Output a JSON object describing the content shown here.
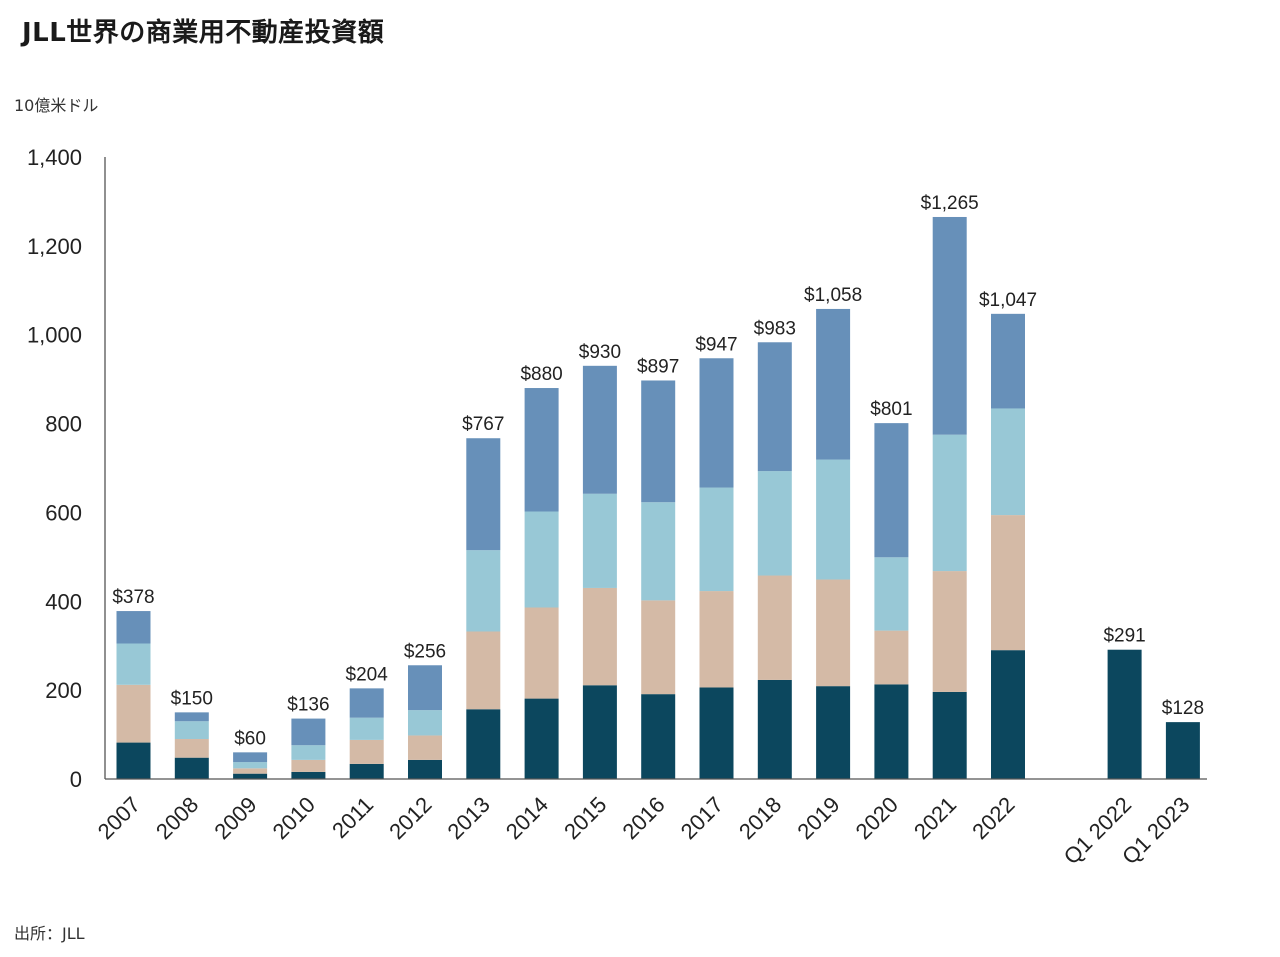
{
  "title": "JLL世界の商業用不動産投資額",
  "y_unit": "10億米ドル",
  "source": "出所：JLL",
  "colors": {
    "segment_1": "#0c475e",
    "segment_2": "#d4baa6",
    "segment_3": "#98c8d6",
    "segment_4": "#6790b9",
    "axis": "#555555"
  },
  "chart_data": {
    "type": "bar",
    "stacked": true,
    "categories": [
      "2007",
      "2008",
      "2009",
      "2010",
      "2011",
      "2012",
      "2013",
      "2014",
      "2015",
      "2016",
      "2017",
      "2018",
      "2019",
      "2020",
      "2021",
      "2022",
      "",
      "Q1 2022",
      "Q1 2023"
    ],
    "series": [
      {
        "values": [
          82,
          48,
          12,
          16,
          34,
          43,
          157,
          181,
          211,
          191,
          206,
          223,
          209,
          213,
          196,
          290,
          null,
          291,
          128
        ]
      },
      {
        "values": [
          130,
          42,
          12,
          27,
          54,
          55,
          175,
          205,
          219,
          211,
          217,
          235,
          240,
          121,
          272,
          304,
          null,
          0,
          0
        ]
      },
      {
        "values": [
          93,
          40,
          14,
          33,
          50,
          57,
          183,
          216,
          212,
          221,
          233,
          235,
          270,
          165,
          307,
          240,
          null,
          0,
          0
        ]
      },
      {
        "values": [
          73,
          20,
          22,
          60,
          66,
          101,
          252,
          278,
          288,
          274,
          291,
          290,
          339,
          302,
          490,
          213,
          null,
          0,
          0
        ]
      }
    ],
    "totals": [
      378,
      150,
      60,
      136,
      204,
      256,
      767,
      880,
      930,
      897,
      947,
      983,
      1058,
      801,
      1265,
      1047,
      null,
      291,
      128
    ],
    "data_labels": [
      "$378",
      "$150",
      "$60",
      "$136",
      "$204",
      "$256",
      "$767",
      "$880",
      "$930",
      "$897",
      "$947",
      "$983",
      "$1,058",
      "$801",
      "$1,265",
      "$1,047",
      "",
      "$291",
      "$128"
    ],
    "y_ticks": [
      "0",
      "200",
      "400",
      "600",
      "800",
      "1,000",
      "1,200",
      "1,400"
    ],
    "ylim": [
      0,
      1400
    ],
    "grid": false,
    "legend": "none"
  }
}
